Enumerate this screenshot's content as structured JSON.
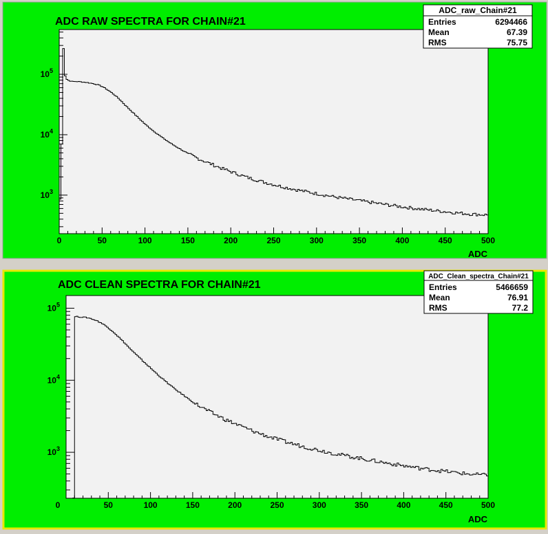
{
  "colors": {
    "pad_background": "#00ee00",
    "frame_background": "#f2f2f2",
    "line": "#000000",
    "selected_border": "#e8e800"
  },
  "chart_data": [
    {
      "type": "line",
      "title": "ADC RAW SPECTRA FOR CHAIN#21",
      "xlabel": "ADC",
      "ylabel": "",
      "xlim": [
        0,
        500
      ],
      "ylim": [
        230,
        550000
      ],
      "yscale": "log",
      "x_ticks": [
        "0",
        "50",
        "100",
        "150",
        "200",
        "250",
        "300",
        "350",
        "400",
        "450",
        "500"
      ],
      "y_ticks": [
        {
          "base": "10",
          "exp": "3",
          "value": 1000
        },
        {
          "base": "10",
          "exp": "4",
          "value": 10000
        },
        {
          "base": "10",
          "exp": "5",
          "value": 100000
        }
      ],
      "stats": {
        "name": "ADC_raw_Chain#21",
        "rows": [
          {
            "label": "Entries",
            "value": "6294466"
          },
          {
            "label": "Mean",
            "value": "67.39"
          },
          {
            "label": "RMS",
            "value": "75.75"
          }
        ]
      },
      "series": [
        {
          "x": [
            0,
            4,
            5,
            6,
            7,
            8,
            10,
            15,
            20,
            25,
            30,
            35,
            40,
            45,
            50,
            55,
            60,
            65,
            70,
            75,
            80,
            90,
            100,
            110,
            120,
            130,
            140,
            150,
            160,
            170,
            180,
            190,
            200,
            220,
            240,
            260,
            280,
            300,
            320,
            340,
            360,
            380,
            400,
            420,
            440,
            460,
            480,
            500
          ],
          "y": [
            300,
            20000,
            270000,
            130000,
            95000,
            85000,
            80000,
            76000,
            76000,
            75000,
            74000,
            72000,
            70000,
            67000,
            63000,
            57000,
            51000,
            45000,
            39000,
            33000,
            28000,
            20500,
            15000,
            11500,
            9000,
            7200,
            5900,
            4900,
            4150,
            3600,
            3150,
            2750,
            2450,
            1950,
            1620,
            1380,
            1200,
            1060,
            940,
            850,
            770,
            700,
            640,
            590,
            550,
            515,
            485,
            470
          ]
        }
      ]
    },
    {
      "type": "line",
      "title": "ADC CLEAN SPECTRA FOR CHAIN#21",
      "xlabel": "ADC",
      "ylabel": "",
      "xlim": [
        0,
        500
      ],
      "ylim": [
        230,
        150000
      ],
      "yscale": "log",
      "x_ticks": [
        "0",
        "50",
        "100",
        "150",
        "200",
        "250",
        "300",
        "350",
        "400",
        "450",
        "500"
      ],
      "y_ticks": [
        {
          "base": "10",
          "exp": "3",
          "value": 1000
        },
        {
          "base": "10",
          "exp": "4",
          "value": 10000
        },
        {
          "base": "10",
          "exp": "5",
          "value": 100000
        }
      ],
      "stats": {
        "name": "ADC_Clean_spectra_Chain#21",
        "rows": [
          {
            "label": "Entries",
            "value": "5466659"
          },
          {
            "label": "Mean",
            "value": "76.91"
          },
          {
            "label": "RMS",
            "value": "77.2"
          }
        ]
      },
      "series": [
        {
          "x": [
            0,
            9,
            10,
            15,
            20,
            25,
            30,
            35,
            40,
            45,
            50,
            55,
            60,
            65,
            70,
            75,
            80,
            90,
            100,
            110,
            120,
            130,
            140,
            150,
            160,
            170,
            180,
            190,
            200,
            220,
            240,
            260,
            280,
            300,
            320,
            340,
            360,
            380,
            400,
            420,
            440,
            460,
            480,
            500
          ],
          "y": [
            230,
            230,
            77000,
            76000,
            75000,
            74000,
            71500,
            68000,
            64000,
            59000,
            53500,
            48000,
            42500,
            37000,
            32500,
            28000,
            24500,
            19000,
            14800,
            11600,
            9200,
            7400,
            6100,
            5000,
            4250,
            3650,
            3200,
            2800,
            2500,
            2000,
            1650,
            1400,
            1210,
            1070,
            950,
            860,
            780,
            710,
            650,
            600,
            560,
            525,
            495,
            480
          ]
        }
      ]
    }
  ]
}
